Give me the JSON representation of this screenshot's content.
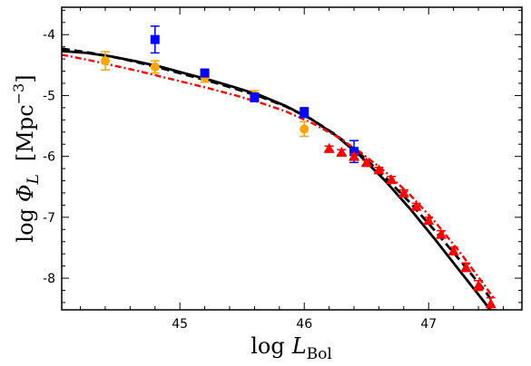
{
  "chart_data": {
    "type": "scatter",
    "title": "",
    "xlabel": {
      "main": "log",
      "italic": "L",
      "sub": "Bol"
    },
    "ylabel": {
      "main": "log",
      "symbol": "Φ",
      "sub": "L",
      "unit": "[Mpc",
      "exp": "−3",
      "close": "]"
    },
    "xlim": [
      44.05,
      47.75
    ],
    "ylim": [
      -8.52,
      -3.55
    ],
    "x_ticks": [
      45,
      46,
      47
    ],
    "x_tick_labels": [
      "45",
      "46",
      "47"
    ],
    "y_ticks": [
      -4,
      -5,
      -6,
      -7,
      -8
    ],
    "y_tick_labels": [
      "-4",
      "-5",
      "-6",
      "-7",
      "-8"
    ],
    "grid": false,
    "legend": "none",
    "series": [
      {
        "style": "line",
        "dash": "solid",
        "color": "#000000",
        "x": [
          44.05,
          44.25,
          44.45,
          44.65,
          44.85,
          45.05,
          45.25,
          45.45,
          45.65,
          45.85,
          46.05,
          46.25,
          46.45,
          46.65,
          46.85,
          47.05,
          47.25,
          47.45,
          47.6
        ],
        "y": [
          -4.27,
          -4.3,
          -4.36,
          -4.44,
          -4.53,
          -4.64,
          -4.75,
          -4.87,
          -5.0,
          -5.17,
          -5.38,
          -5.65,
          -5.99,
          -6.4,
          -6.86,
          -7.36,
          -7.88,
          -8.4,
          -8.82
        ]
      },
      {
        "style": "line",
        "dash": "dashed",
        "color": "#000000",
        "x": [
          44.05,
          44.25,
          44.45,
          44.65,
          44.85,
          45.05,
          45.25,
          45.45,
          45.65,
          45.85,
          46.05,
          46.25,
          46.45,
          46.65,
          46.85,
          47.05,
          47.25,
          47.45,
          47.52
        ],
        "y": [
          -4.23,
          -4.29,
          -4.36,
          -4.45,
          -4.55,
          -4.66,
          -4.77,
          -4.89,
          -5.02,
          -5.18,
          -5.38,
          -5.64,
          -5.96,
          -6.34,
          -6.76,
          -7.22,
          -7.7,
          -8.2,
          -8.4
        ]
      },
      {
        "style": "line",
        "dash": "dashdot",
        "color": "#ff0000",
        "x": [
          44.05,
          44.25,
          44.45,
          44.65,
          44.85,
          45.05,
          45.25,
          45.45,
          45.65,
          45.85,
          46.05,
          46.25,
          46.45,
          46.65,
          46.85,
          47.05,
          47.25,
          47.45,
          47.52
        ],
        "y": [
          -4.33,
          -4.41,
          -4.5,
          -4.59,
          -4.69,
          -4.79,
          -4.89,
          -5.0,
          -5.12,
          -5.26,
          -5.44,
          -5.66,
          -5.93,
          -6.25,
          -6.63,
          -7.07,
          -7.57,
          -8.12,
          -8.32
        ]
      },
      {
        "style": "points",
        "marker": "circle",
        "color": "#ffa500",
        "x": [
          44.4,
          44.8,
          45.2,
          45.6,
          46.0
        ],
        "y": [
          -4.43,
          -4.53,
          -4.7,
          -5.0,
          -5.55
        ],
        "err": [
          0.15,
          0.1,
          0.08,
          0.08,
          0.12
        ]
      },
      {
        "style": "points",
        "marker": "square",
        "color": "#0000ff",
        "x": [
          44.8,
          45.2,
          45.6,
          46.0,
          46.4
        ],
        "y": [
          -4.08,
          -4.63,
          -5.03,
          -5.28,
          -5.92
        ],
        "err": [
          0.22,
          0.05,
          0.07,
          0.08,
          0.18
        ]
      },
      {
        "style": "points",
        "marker": "triangle",
        "color": "#ff0000",
        "x": [
          46.2,
          46.3,
          46.4,
          46.5,
          46.6,
          46.7,
          46.8,
          46.9,
          47.0,
          47.1,
          47.2,
          47.3,
          47.4,
          47.5
        ],
        "y": [
          -5.87,
          -5.93,
          -6.0,
          -6.1,
          -6.22,
          -6.38,
          -6.6,
          -6.82,
          -7.05,
          -7.28,
          -7.55,
          -7.82,
          -8.12,
          -8.42
        ],
        "err": [
          0.04,
          0.04,
          0.04,
          0.04,
          0.04,
          0.05,
          0.05,
          0.05,
          0.05,
          0.06,
          0.06,
          0.07,
          0.08,
          0.1
        ]
      }
    ]
  }
}
